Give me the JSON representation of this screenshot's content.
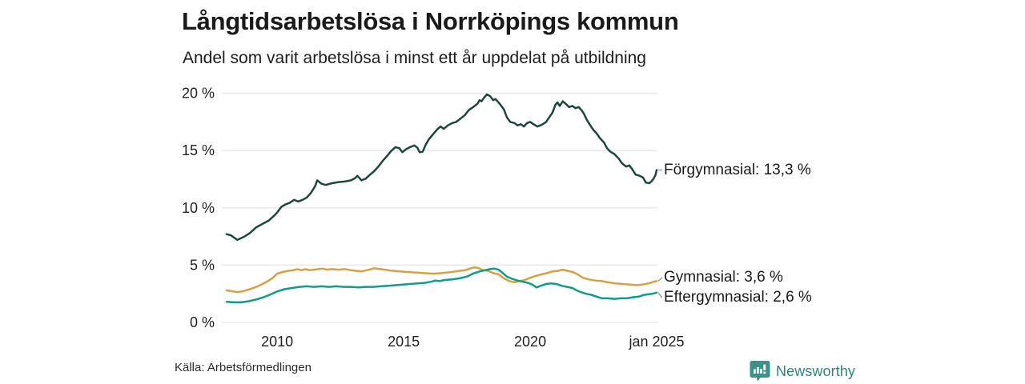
{
  "header": {
    "title": "Långtidsarbetslösa i Norrköpings kommun",
    "subtitle": "Andel som varit arbetslösa i minst ett år uppdelat på utbildning"
  },
  "footer": {
    "source": "Källa: Arbetsförmedlingen",
    "brand_name": "Newsworthy",
    "brand_color": "#3c918a",
    "brand_icon": "bar-chart-speech-bubble-icon"
  },
  "chart_data": {
    "type": "line",
    "title": "Långtidsarbetslösa i Norrköpings kommun",
    "subtitle": "Andel som varit arbetslösa i minst ett år uppdelat på utbildning",
    "grid": "horizontal-only",
    "legend_position": "right-end-labels",
    "x_axis": {
      "label": "",
      "range_years": [
        2008.0,
        2025.0
      ],
      "ticks": [
        {
          "year": 2010,
          "label": "2010"
        },
        {
          "year": 2015,
          "label": "2015"
        },
        {
          "year": 2020,
          "label": "2020"
        },
        {
          "year": 2025,
          "label": "jan 2025"
        }
      ]
    },
    "y_axis": {
      "label": "",
      "range": [
        0,
        20
      ],
      "unit": "%",
      "ticks": [
        {
          "value": 0,
          "label": "0 %"
        },
        {
          "value": 5,
          "label": "5 %"
        },
        {
          "value": 10,
          "label": "10 %"
        },
        {
          "value": 15,
          "label": "15 %"
        },
        {
          "value": 20,
          "label": "20 %"
        }
      ]
    },
    "series": [
      {
        "name": "Förgymnasial",
        "color": "#1f463e",
        "end_value": 13.3,
        "end_label": "Förgymnasial: 13,3 %",
        "points": [
          [
            2008.0,
            7.7
          ],
          [
            2008.17,
            7.6
          ],
          [
            2008.42,
            7.2
          ],
          [
            2008.67,
            7.45
          ],
          [
            2008.92,
            7.8
          ],
          [
            2009.17,
            8.3
          ],
          [
            2009.42,
            8.6
          ],
          [
            2009.67,
            8.9
          ],
          [
            2009.92,
            9.4
          ],
          [
            2010.0,
            9.6
          ],
          [
            2010.17,
            10.1
          ],
          [
            2010.33,
            10.3
          ],
          [
            2010.5,
            10.45
          ],
          [
            2010.67,
            10.7
          ],
          [
            2010.83,
            10.55
          ],
          [
            2011.0,
            10.7
          ],
          [
            2011.17,
            10.9
          ],
          [
            2011.33,
            11.3
          ],
          [
            2011.5,
            11.9
          ],
          [
            2011.58,
            12.4
          ],
          [
            2011.75,
            12.1
          ],
          [
            2011.92,
            12.0
          ],
          [
            2012.17,
            12.15
          ],
          [
            2012.42,
            12.25
          ],
          [
            2012.67,
            12.3
          ],
          [
            2012.92,
            12.4
          ],
          [
            2013.08,
            12.6
          ],
          [
            2013.17,
            12.8
          ],
          [
            2013.33,
            12.4
          ],
          [
            2013.5,
            12.55
          ],
          [
            2013.67,
            12.9
          ],
          [
            2013.83,
            13.2
          ],
          [
            2014.0,
            13.6
          ],
          [
            2014.17,
            14.1
          ],
          [
            2014.33,
            14.5
          ],
          [
            2014.5,
            14.95
          ],
          [
            2014.67,
            15.3
          ],
          [
            2014.83,
            15.2
          ],
          [
            2014.95,
            14.85
          ],
          [
            2015.08,
            15.1
          ],
          [
            2015.25,
            15.3
          ],
          [
            2015.42,
            15.45
          ],
          [
            2015.54,
            15.25
          ],
          [
            2015.63,
            14.85
          ],
          [
            2015.75,
            14.9
          ],
          [
            2015.88,
            15.55
          ],
          [
            2016.0,
            16.0
          ],
          [
            2016.17,
            16.45
          ],
          [
            2016.33,
            16.85
          ],
          [
            2016.46,
            17.1
          ],
          [
            2016.58,
            16.9
          ],
          [
            2016.75,
            17.2
          ],
          [
            2016.92,
            17.4
          ],
          [
            2017.08,
            17.5
          ],
          [
            2017.25,
            17.8
          ],
          [
            2017.42,
            18.1
          ],
          [
            2017.58,
            18.55
          ],
          [
            2017.75,
            18.8
          ],
          [
            2017.92,
            19.1
          ],
          [
            2018.0,
            19.4
          ],
          [
            2018.08,
            19.3
          ],
          [
            2018.17,
            19.6
          ],
          [
            2018.29,
            19.9
          ],
          [
            2018.42,
            19.75
          ],
          [
            2018.54,
            19.4
          ],
          [
            2018.63,
            19.5
          ],
          [
            2018.79,
            19.1
          ],
          [
            2018.96,
            18.6
          ],
          [
            2019.08,
            17.9
          ],
          [
            2019.21,
            17.5
          ],
          [
            2019.38,
            17.4
          ],
          [
            2019.5,
            17.2
          ],
          [
            2019.63,
            17.3
          ],
          [
            2019.75,
            17.1
          ],
          [
            2019.88,
            17.4
          ],
          [
            2020.0,
            17.5
          ],
          [
            2020.13,
            17.3
          ],
          [
            2020.29,
            17.1
          ],
          [
            2020.46,
            17.25
          ],
          [
            2020.63,
            17.5
          ],
          [
            2020.75,
            17.9
          ],
          [
            2020.88,
            18.3
          ],
          [
            2021.0,
            19.0
          ],
          [
            2021.08,
            19.2
          ],
          [
            2021.17,
            18.9
          ],
          [
            2021.29,
            19.3
          ],
          [
            2021.42,
            19.05
          ],
          [
            2021.54,
            18.8
          ],
          [
            2021.67,
            18.9
          ],
          [
            2021.79,
            18.7
          ],
          [
            2021.92,
            18.8
          ],
          [
            2022.04,
            18.5
          ],
          [
            2022.13,
            18.2
          ],
          [
            2022.25,
            17.65
          ],
          [
            2022.38,
            17.2
          ],
          [
            2022.5,
            16.8
          ],
          [
            2022.63,
            16.5
          ],
          [
            2022.75,
            16.1
          ],
          [
            2022.92,
            15.7
          ],
          [
            2023.04,
            15.2
          ],
          [
            2023.17,
            14.9
          ],
          [
            2023.33,
            14.7
          ],
          [
            2023.5,
            14.3
          ],
          [
            2023.63,
            13.9
          ],
          [
            2023.79,
            13.6
          ],
          [
            2023.92,
            13.7
          ],
          [
            2024.04,
            13.35
          ],
          [
            2024.17,
            12.9
          ],
          [
            2024.33,
            12.8
          ],
          [
            2024.46,
            12.65
          ],
          [
            2024.58,
            12.2
          ],
          [
            2024.71,
            12.15
          ],
          [
            2024.79,
            12.3
          ],
          [
            2024.88,
            12.55
          ],
          [
            2024.96,
            12.9
          ],
          [
            2025.0,
            13.3
          ]
        ]
      },
      {
        "name": "Gymnasial",
        "color": "#d2a244",
        "end_value": 3.6,
        "end_label": "Gymnasial:  3,6 %",
        "points": [
          [
            2008.0,
            2.8
          ],
          [
            2008.25,
            2.7
          ],
          [
            2008.46,
            2.65
          ],
          [
            2008.71,
            2.75
          ],
          [
            2008.92,
            2.9
          ],
          [
            2009.17,
            3.1
          ],
          [
            2009.42,
            3.35
          ],
          [
            2009.63,
            3.6
          ],
          [
            2009.83,
            3.9
          ],
          [
            2010.0,
            4.25
          ],
          [
            2010.21,
            4.4
          ],
          [
            2010.42,
            4.5
          ],
          [
            2010.63,
            4.55
          ],
          [
            2010.79,
            4.65
          ],
          [
            2010.96,
            4.55
          ],
          [
            2011.13,
            4.65
          ],
          [
            2011.29,
            4.55
          ],
          [
            2011.46,
            4.6
          ],
          [
            2011.63,
            4.65
          ],
          [
            2011.79,
            4.7
          ],
          [
            2011.96,
            4.6
          ],
          [
            2012.17,
            4.65
          ],
          [
            2012.42,
            4.6
          ],
          [
            2012.67,
            4.65
          ],
          [
            2012.92,
            4.55
          ],
          [
            2013.13,
            4.5
          ],
          [
            2013.33,
            4.45
          ],
          [
            2013.54,
            4.55
          ],
          [
            2013.71,
            4.65
          ],
          [
            2013.83,
            4.72
          ],
          [
            2014.0,
            4.68
          ],
          [
            2014.25,
            4.6
          ],
          [
            2014.5,
            4.52
          ],
          [
            2014.83,
            4.45
          ],
          [
            2015.17,
            4.4
          ],
          [
            2015.5,
            4.35
          ],
          [
            2015.83,
            4.3
          ],
          [
            2016.17,
            4.25
          ],
          [
            2016.5,
            4.3
          ],
          [
            2016.83,
            4.38
          ],
          [
            2017.17,
            4.48
          ],
          [
            2017.42,
            4.55
          ],
          [
            2017.63,
            4.7
          ],
          [
            2017.79,
            4.8
          ],
          [
            2017.96,
            4.75
          ],
          [
            2018.08,
            4.6
          ],
          [
            2018.33,
            4.5
          ],
          [
            2018.54,
            4.3
          ],
          [
            2018.75,
            4.2
          ],
          [
            2018.96,
            3.85
          ],
          [
            2019.17,
            3.6
          ],
          [
            2019.38,
            3.5
          ],
          [
            2019.58,
            3.6
          ],
          [
            2019.79,
            3.7
          ],
          [
            2020.0,
            3.9
          ],
          [
            2020.21,
            4.05
          ],
          [
            2020.46,
            4.2
          ],
          [
            2020.67,
            4.3
          ],
          [
            2020.88,
            4.45
          ],
          [
            2021.08,
            4.5
          ],
          [
            2021.29,
            4.6
          ],
          [
            2021.5,
            4.5
          ],
          [
            2021.67,
            4.4
          ],
          [
            2021.88,
            4.2
          ],
          [
            2022.08,
            3.9
          ],
          [
            2022.33,
            3.75
          ],
          [
            2022.58,
            3.65
          ],
          [
            2022.83,
            3.6
          ],
          [
            2023.08,
            3.5
          ],
          [
            2023.38,
            3.4
          ],
          [
            2023.67,
            3.35
          ],
          [
            2023.96,
            3.3
          ],
          [
            2024.21,
            3.25
          ],
          [
            2024.42,
            3.3
          ],
          [
            2024.58,
            3.35
          ],
          [
            2024.75,
            3.45
          ],
          [
            2024.88,
            3.55
          ],
          [
            2025.0,
            3.6
          ]
        ]
      },
      {
        "name": "Eftergymnasial",
        "color": "#109c87",
        "end_value": 2.6,
        "end_label": "Eftergymnasial:  2,6 %",
        "points": [
          [
            2008.0,
            1.8
          ],
          [
            2008.29,
            1.75
          ],
          [
            2008.58,
            1.75
          ],
          [
            2008.88,
            1.85
          ],
          [
            2009.17,
            2.0
          ],
          [
            2009.46,
            2.2
          ],
          [
            2009.75,
            2.45
          ],
          [
            2010.0,
            2.7
          ],
          [
            2010.29,
            2.9
          ],
          [
            2010.58,
            3.0
          ],
          [
            2010.88,
            3.1
          ],
          [
            2011.17,
            3.15
          ],
          [
            2011.46,
            3.1
          ],
          [
            2011.75,
            3.15
          ],
          [
            2012.04,
            3.1
          ],
          [
            2012.33,
            3.15
          ],
          [
            2012.63,
            3.1
          ],
          [
            2012.92,
            3.1
          ],
          [
            2013.21,
            3.05
          ],
          [
            2013.5,
            3.1
          ],
          [
            2013.79,
            3.1
          ],
          [
            2014.08,
            3.15
          ],
          [
            2014.38,
            3.2
          ],
          [
            2014.67,
            3.25
          ],
          [
            2014.96,
            3.3
          ],
          [
            2015.25,
            3.35
          ],
          [
            2015.54,
            3.4
          ],
          [
            2015.83,
            3.45
          ],
          [
            2016.08,
            3.55
          ],
          [
            2016.25,
            3.65
          ],
          [
            2016.42,
            3.6
          ],
          [
            2016.63,
            3.7
          ],
          [
            2016.92,
            3.75
          ],
          [
            2017.21,
            3.85
          ],
          [
            2017.5,
            4.0
          ],
          [
            2017.79,
            4.3
          ],
          [
            2018.0,
            4.45
          ],
          [
            2018.21,
            4.55
          ],
          [
            2018.42,
            4.65
          ],
          [
            2018.58,
            4.7
          ],
          [
            2018.75,
            4.6
          ],
          [
            2018.92,
            4.3
          ],
          [
            2019.08,
            4.0
          ],
          [
            2019.29,
            3.8
          ],
          [
            2019.5,
            3.65
          ],
          [
            2019.71,
            3.55
          ],
          [
            2019.92,
            3.45
          ],
          [
            2020.08,
            3.3
          ],
          [
            2020.25,
            3.05
          ],
          [
            2020.42,
            3.2
          ],
          [
            2020.63,
            3.35
          ],
          [
            2020.83,
            3.4
          ],
          [
            2021.04,
            3.35
          ],
          [
            2021.25,
            3.2
          ],
          [
            2021.46,
            3.1
          ],
          [
            2021.67,
            3.0
          ],
          [
            2021.83,
            2.8
          ],
          [
            2022.0,
            2.65
          ],
          [
            2022.21,
            2.5
          ],
          [
            2022.42,
            2.4
          ],
          [
            2022.63,
            2.25
          ],
          [
            2022.83,
            2.1
          ],
          [
            2023.08,
            2.1
          ],
          [
            2023.33,
            2.05
          ],
          [
            2023.58,
            2.1
          ],
          [
            2023.83,
            2.1
          ],
          [
            2024.08,
            2.2
          ],
          [
            2024.29,
            2.25
          ],
          [
            2024.5,
            2.4
          ],
          [
            2024.67,
            2.45
          ],
          [
            2024.83,
            2.5
          ],
          [
            2025.0,
            2.6
          ]
        ]
      }
    ]
  }
}
